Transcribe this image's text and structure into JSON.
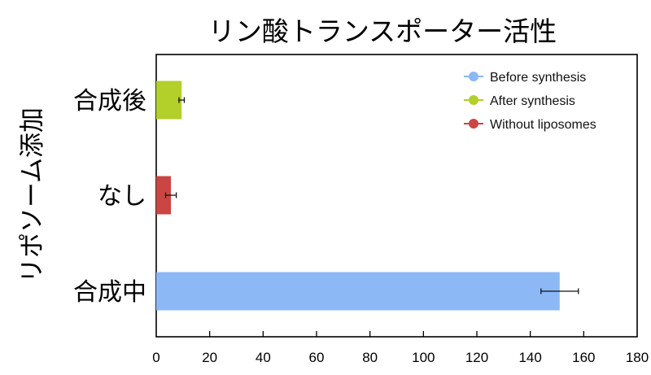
{
  "chart_data": {
    "type": "bar",
    "orientation": "horizontal",
    "title": "リン酸トランスポーター活性",
    "xlabel": "",
    "ylabel": "リポソーム添加",
    "categories": [
      "合成後",
      "なし",
      "合成中"
    ],
    "values": [
      9.5,
      5.5,
      151
    ],
    "errors": [
      1,
      2,
      7
    ],
    "colors": [
      "#b2cf2a",
      "#c94642",
      "#8db8f6"
    ],
    "xlim": [
      0,
      180
    ],
    "xticks": [
      0,
      20,
      40,
      60,
      80,
      100,
      120,
      140,
      160,
      180
    ],
    "grid": false,
    "legend_position": "top-right",
    "legend": [
      {
        "label": "Before synthesis",
        "color": "#8db8f6"
      },
      {
        "label": "After synthesis",
        "color": "#b2cf2a"
      },
      {
        "label": "Without liposomes",
        "color": "#c94642"
      }
    ]
  }
}
